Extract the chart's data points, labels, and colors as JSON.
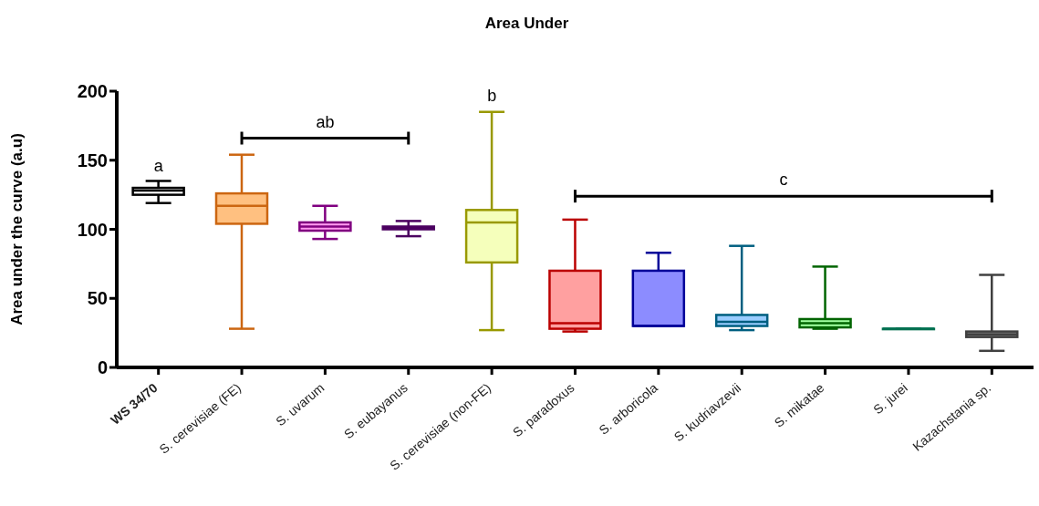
{
  "chart_data": {
    "type": "box",
    "title": "Area Under",
    "ylabel": "Area under the curve (a.u)",
    "categories": [
      "WS 34/70",
      "S. cerevisiae (FE)",
      "S. uvarum",
      "S. eubayanus",
      "S. cerevisiae (non-FE)",
      "S. paradoxus",
      "S. arboricola",
      "S. kudriavzevii",
      "S. mikatae",
      "S. jurei",
      "Kazachstania sp."
    ],
    "boxes": [
      {
        "low": 119,
        "q1": 125,
        "median": 128,
        "q3": 130,
        "high": 135
      },
      {
        "low": 28,
        "q1": 104,
        "median": 117,
        "q3": 126,
        "high": 154
      },
      {
        "low": 93,
        "q1": 99,
        "median": 102,
        "q3": 105,
        "high": 117
      },
      {
        "low": 95,
        "q1": 100,
        "median": 101,
        "q3": 102,
        "high": 106
      },
      {
        "low": 27,
        "q1": 76,
        "median": 105,
        "q3": 114,
        "high": 185
      },
      {
        "low": 26,
        "q1": 28,
        "median": 32,
        "q3": 70,
        "high": 107
      },
      {
        "low": 30,
        "q1": 30,
        "median": 30,
        "q3": 70,
        "high": 83
      },
      {
        "low": 27,
        "q1": 30,
        "median": 33,
        "q3": 38,
        "high": 88
      },
      {
        "low": 28,
        "q1": 29,
        "median": 32,
        "q3": 35,
        "high": 73
      },
      {
        "low": 28,
        "q1": 28,
        "median": 28,
        "q3": 28,
        "high": 28
      },
      {
        "low": 12,
        "q1": 22,
        "median": 24,
        "q3": 26,
        "high": 67
      }
    ],
    "colors": [
      "#000000",
      "#cc6611",
      "#800080",
      "#4b0060",
      "#999900",
      "#bb0000",
      "#000099",
      "#005f80",
      "#006400",
      "#007050",
      "#404040"
    ],
    "ylim": [
      0,
      200
    ],
    "yticks": [
      0,
      50,
      100,
      150,
      200
    ],
    "annotations": [
      "a",
      "ab",
      "b",
      "c"
    ]
  }
}
